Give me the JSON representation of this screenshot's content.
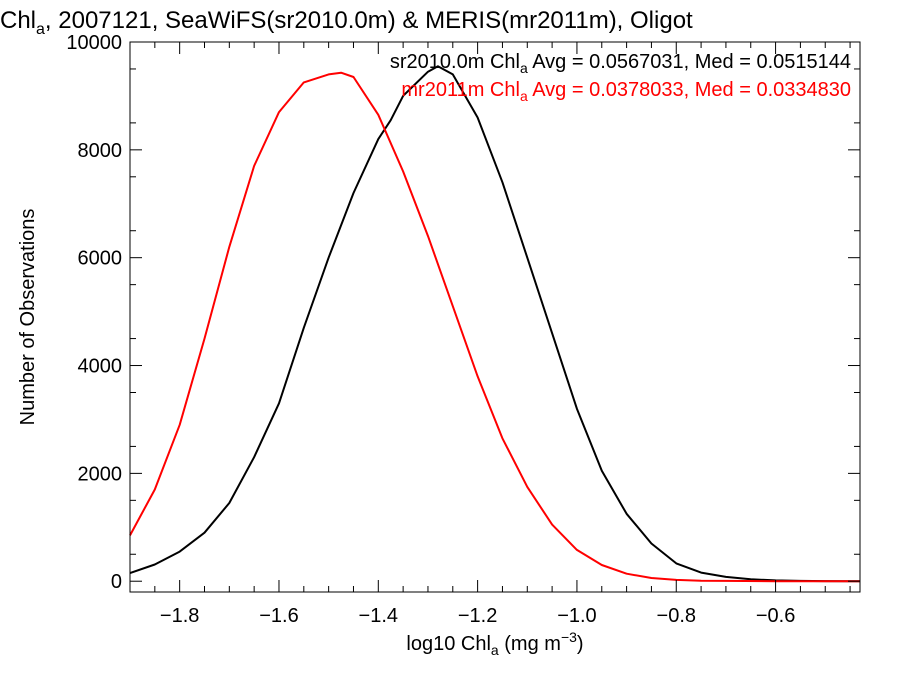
{
  "chart_data": {
    "type": "line",
    "title": {
      "prefix": "Chl",
      "sub": "a",
      "rest": ", 2007121, SeaWiFS(sr2010.0m) & MERIS(mr2011m), Oligot"
    },
    "xlabel": {
      "pre": "log10 Chl",
      "sub": "a",
      "mid": " (mg m",
      "sup": "−3",
      "post": ")"
    },
    "ylabel": "Number of Observations",
    "xlim": [
      -1.9,
      -0.43
    ],
    "ylim": [
      -200,
      10000
    ],
    "xticks": [
      -1.8,
      -1.6,
      -1.4,
      -1.2,
      -1.0,
      -0.8,
      -0.6
    ],
    "xtick_labels": [
      "−1.8",
      "−1.6",
      "−1.4",
      "−1.2",
      "−1.0",
      "−0.8",
      "−0.6"
    ],
    "yticks": [
      0,
      2000,
      4000,
      6000,
      8000,
      10000
    ],
    "ytick_labels": [
      "0",
      "2000",
      "4000",
      "6000",
      "8000",
      "10000"
    ],
    "series": [
      {
        "name": "sr2010.0m",
        "color": "#000000",
        "legend": {
          "pre": "sr2010.0m Chl",
          "sub": "a",
          "post": " Avg = 0.0567031, Med = 0.0515144"
        },
        "x": [
          -1.9,
          -1.85,
          -1.8,
          -1.75,
          -1.7,
          -1.65,
          -1.6,
          -1.55,
          -1.5,
          -1.45,
          -1.4,
          -1.375,
          -1.35,
          -1.3,
          -1.28,
          -1.25,
          -1.2,
          -1.15,
          -1.1,
          -1.05,
          -1.0,
          -0.95,
          -0.9,
          -0.85,
          -0.8,
          -0.75,
          -0.7,
          -0.65,
          -0.6,
          -0.55,
          -0.5,
          -0.43
        ],
        "y": [
          150,
          310,
          550,
          900,
          1450,
          2300,
          3300,
          4700,
          6000,
          7200,
          8200,
          8550,
          9000,
          9450,
          9550,
          9400,
          8600,
          7400,
          6000,
          4600,
          3200,
          2050,
          1250,
          700,
          330,
          160,
          80,
          35,
          15,
          5,
          2,
          0
        ]
      },
      {
        "name": "mr2011m",
        "color": "#ff0000",
        "legend": {
          "pre": "mr2011m Chl",
          "sub": "a",
          "post": " Avg = 0.0378033, Med = 0.0334830"
        },
        "x": [
          -1.9,
          -1.85,
          -1.8,
          -1.75,
          -1.7,
          -1.65,
          -1.6,
          -1.55,
          -1.5,
          -1.475,
          -1.45,
          -1.4,
          -1.35,
          -1.3,
          -1.25,
          -1.2,
          -1.15,
          -1.1,
          -1.05,
          -1.0,
          -0.95,
          -0.9,
          -0.85,
          -0.8,
          -0.75,
          -0.7,
          -0.6,
          -0.43
        ],
        "y": [
          850,
          1700,
          2900,
          4500,
          6200,
          7700,
          8700,
          9250,
          9400,
          9430,
          9350,
          8650,
          7600,
          6400,
          5100,
          3800,
          2650,
          1750,
          1050,
          580,
          300,
          140,
          60,
          25,
          10,
          5,
          1,
          0
        ]
      }
    ],
    "grid": false,
    "legend_position": "top-right"
  }
}
